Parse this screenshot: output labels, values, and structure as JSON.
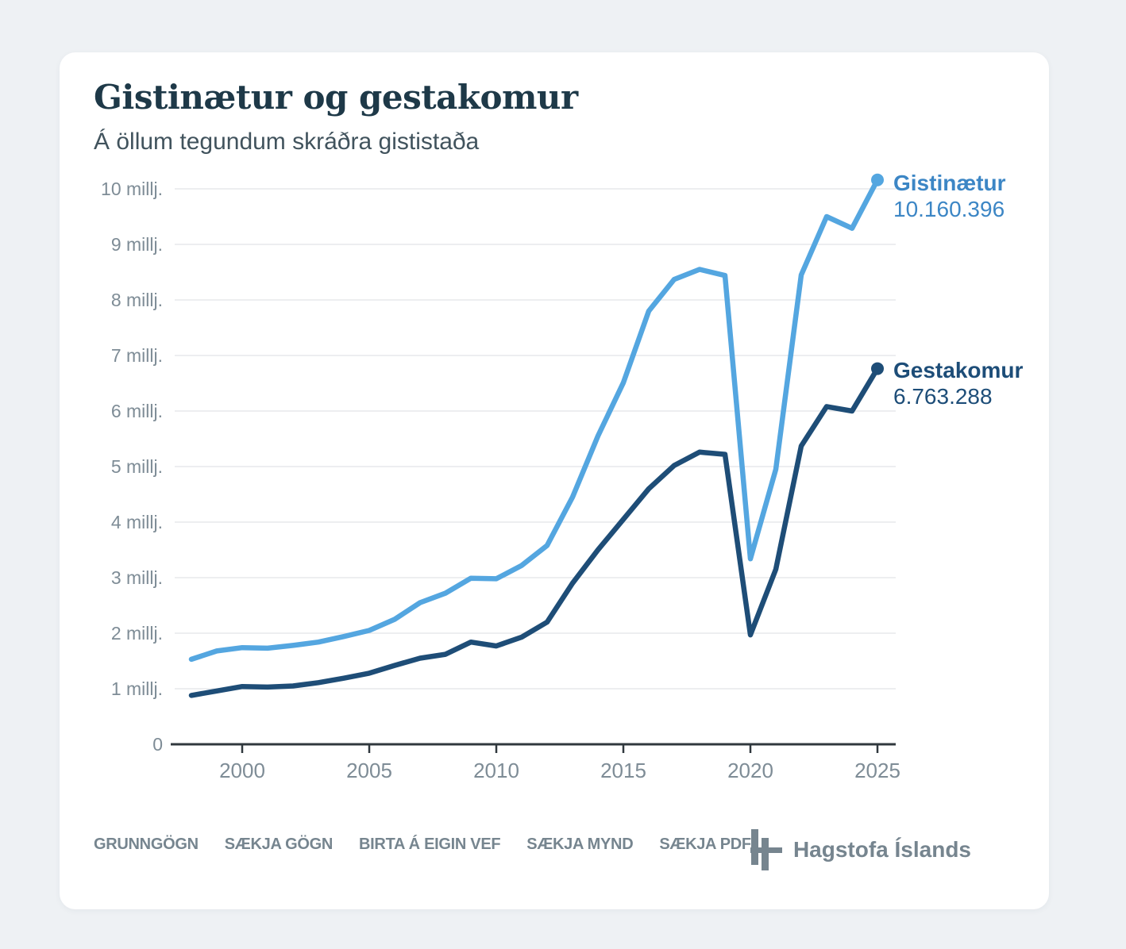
{
  "header": {
    "title": "Gistinætur og gestakomur",
    "subtitle": "Á öllum tegundum skráðra gististaða"
  },
  "chart_data": {
    "type": "line",
    "x": [
      1998,
      1999,
      2000,
      2001,
      2002,
      2003,
      2004,
      2005,
      2006,
      2007,
      2008,
      2009,
      2010,
      2011,
      2012,
      2013,
      2014,
      2015,
      2016,
      2017,
      2018,
      2019,
      2020,
      2021,
      2022,
      2023,
      2024,
      2025
    ],
    "series": [
      {
        "name": "Gistinætur",
        "color": "#54a6e0",
        "label_color": "#3c86c5",
        "end_value_label": "10.160.396",
        "values_millions": [
          1.53,
          1.68,
          1.74,
          1.73,
          1.78,
          1.84,
          1.94,
          2.05,
          2.25,
          2.55,
          2.72,
          2.99,
          2.98,
          3.22,
          3.58,
          4.45,
          5.55,
          6.51,
          7.8,
          8.37,
          8.55,
          8.44,
          3.34,
          4.95,
          8.45,
          9.5,
          9.29,
          10.160396
        ]
      },
      {
        "name": "Gestakomur",
        "color": "#1e4d77",
        "label_color": "#1d4d78",
        "end_value_label": "6.763.288",
        "values_millions": [
          0.88,
          0.96,
          1.04,
          1.03,
          1.05,
          1.11,
          1.19,
          1.28,
          1.42,
          1.55,
          1.62,
          1.84,
          1.77,
          1.93,
          2.2,
          2.9,
          3.5,
          4.05,
          4.6,
          5.02,
          5.26,
          5.22,
          1.97,
          3.15,
          5.37,
          6.08,
          6.0,
          6.763288
        ]
      }
    ],
    "y_unit": "millj.",
    "y_ticks": [
      {
        "value": 10,
        "label": "10 millj."
      },
      {
        "value": 9,
        "label": "9 millj."
      },
      {
        "value": 8,
        "label": "8 millj."
      },
      {
        "value": 7,
        "label": "7 millj."
      },
      {
        "value": 6,
        "label": "6 millj."
      },
      {
        "value": 5,
        "label": "5 millj."
      },
      {
        "value": 4,
        "label": "4 millj."
      },
      {
        "value": 3,
        "label": "3 millj."
      },
      {
        "value": 2,
        "label": "2 millj."
      },
      {
        "value": 1,
        "label": "1 millj."
      },
      {
        "value": 0,
        "label": "0"
      }
    ],
    "x_ticks": [
      2000,
      2005,
      2010,
      2015,
      2020,
      2025
    ],
    "ylim": [
      0,
      10.5
    ],
    "grid": "horizontal",
    "legend_position": "line-end-right",
    "colors": {
      "grid": "#e7e9eb",
      "axis": "#30383e",
      "tick_label": "#7e8c96"
    }
  },
  "footer": {
    "links": [
      "GRUNNGÖGN",
      "SÆKJA GÖGN",
      "BIRTA Á EIGIN VEF",
      "SÆKJA MYND",
      "SÆKJA PDF"
    ],
    "brand": "Hagstofa Íslands"
  }
}
